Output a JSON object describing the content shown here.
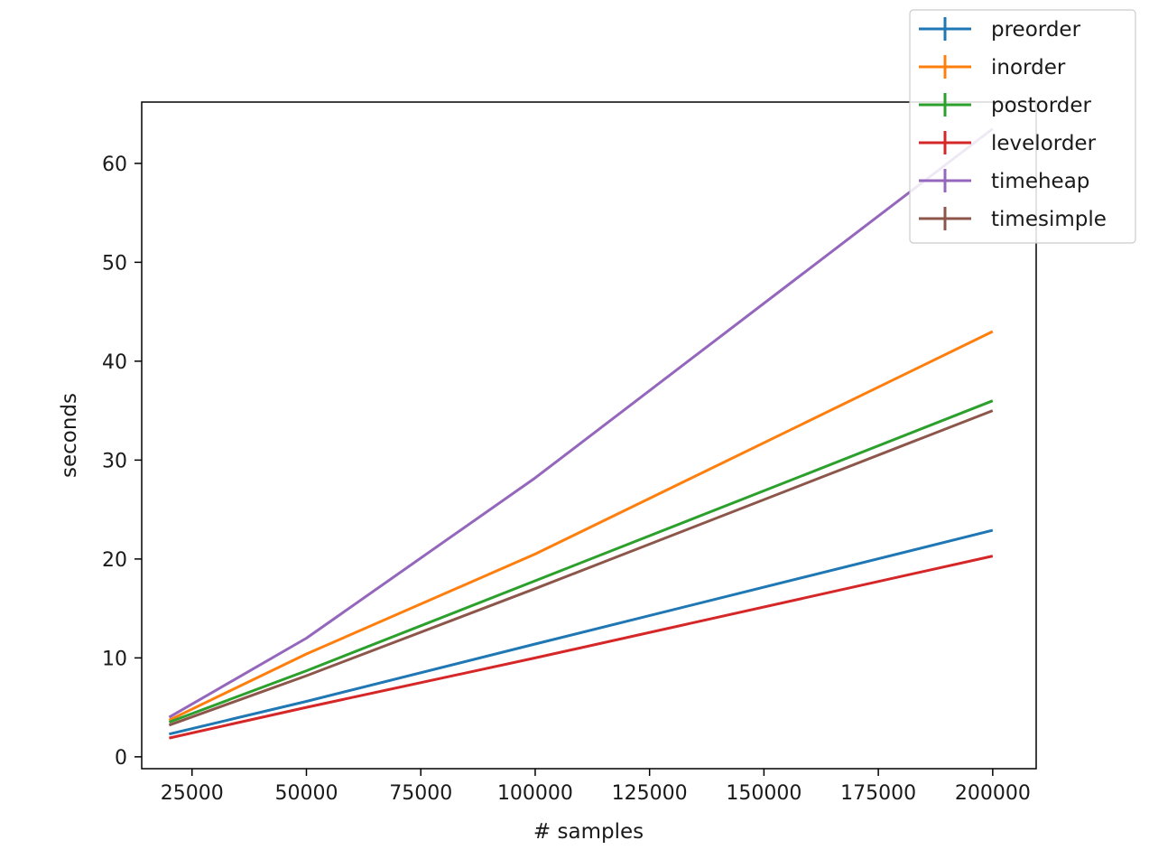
{
  "chart_data": {
    "type": "line",
    "title": "",
    "xlabel": "# samples",
    "ylabel": "seconds",
    "x": [
      20000,
      50000,
      100000,
      200000
    ],
    "xlim": [
      14000,
      209500
    ],
    "ylim": [
      -1.2,
      66.2
    ],
    "xticks": [
      25000,
      50000,
      75000,
      100000,
      125000,
      150000,
      175000,
      200000
    ],
    "xtick_labels": [
      "25000",
      "50000",
      "75000",
      "100000",
      "125000",
      "150000",
      "175000",
      "200000"
    ],
    "yticks": [
      0,
      10,
      20,
      30,
      40,
      50,
      60
    ],
    "ytick_labels": [
      "0",
      "10",
      "20",
      "30",
      "40",
      "50",
      "60"
    ],
    "grid": false,
    "legend_position": "top-right",
    "series": [
      {
        "name": "preorder",
        "color": "#1f77b4",
        "values": [
          2.3,
          5.6,
          11.4,
          22.9
        ]
      },
      {
        "name": "inorder",
        "color": "#ff7f0e",
        "values": [
          3.7,
          10.4,
          20.5,
          43.0
        ]
      },
      {
        "name": "postorder",
        "color": "#2ca02c",
        "values": [
          3.5,
          8.7,
          17.8,
          36.0
        ]
      },
      {
        "name": "levelorder",
        "color": "#d62728",
        "values": [
          1.9,
          5.0,
          10.0,
          20.3
        ]
      },
      {
        "name": "timeheap",
        "color": "#9467bd",
        "values": [
          4.0,
          12.0,
          28.2,
          63.5
        ]
      },
      {
        "name": "timesimple",
        "color": "#8c564b",
        "values": [
          3.2,
          8.2,
          17.0,
          35.0
        ]
      }
    ]
  }
}
